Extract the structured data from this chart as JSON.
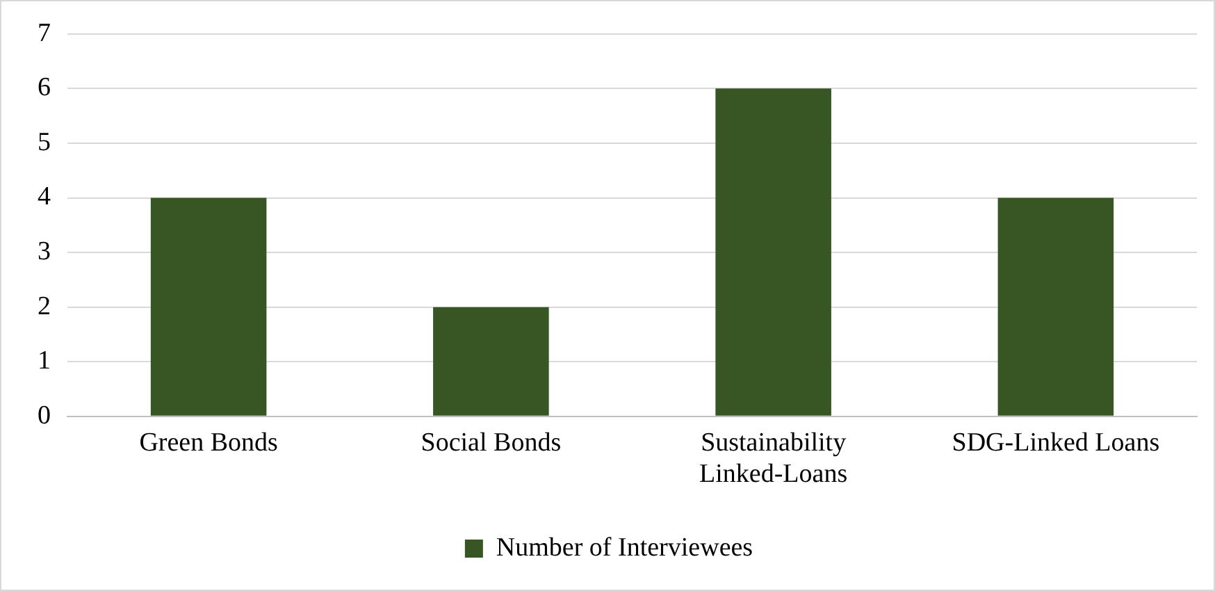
{
  "chart_data": {
    "type": "bar",
    "categories": [
      "Green Bonds",
      "Social Bonds",
      "Sustainability Linked-Loans",
      "SDG-Linked Loans"
    ],
    "series": [
      {
        "name": "Number of Interviewees",
        "color": "#375623",
        "values": [
          4,
          2,
          6,
          4
        ]
      }
    ],
    "ylim": [
      0,
      7
    ],
    "yticks": [
      0,
      1,
      2,
      3,
      4,
      5,
      6,
      7
    ],
    "grid": "y",
    "legend": "bottom"
  }
}
